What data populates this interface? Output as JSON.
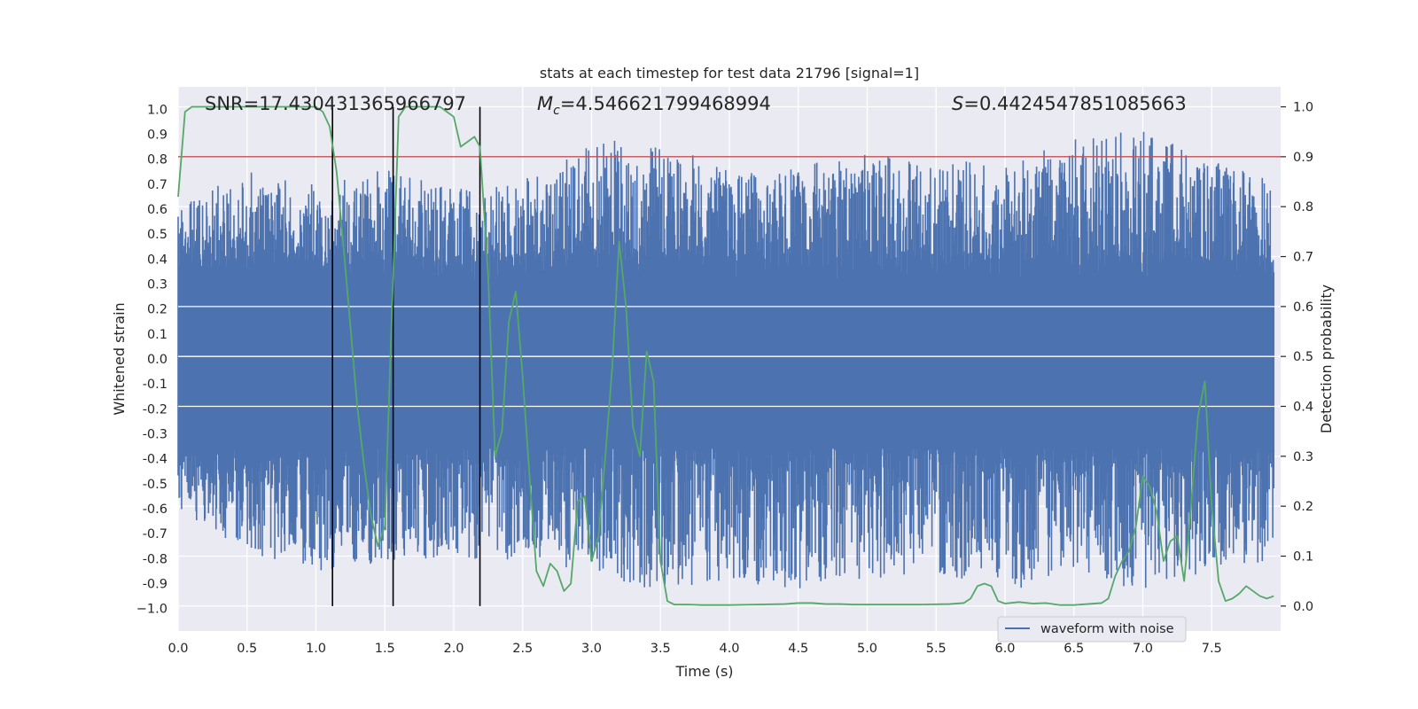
{
  "chart_data": {
    "type": "line",
    "title": "stats at each timestep for test data 21796 [signal=1]",
    "xlabel": "Time (s)",
    "ylabel_left": "Whitened strain",
    "ylabel_right": "Detection probability",
    "xlim": [
      0,
      8
    ],
    "ylim_left": [
      -1.09,
      1.09
    ],
    "ylim_right": [
      -0.05,
      1.04
    ],
    "x_ticks": [
      "0.0",
      "0.5",
      "1.0",
      "1.5",
      "2.0",
      "2.5",
      "3.0",
      "3.5",
      "4.0",
      "4.5",
      "5.0",
      "5.5",
      "6.0",
      "6.5",
      "7.0",
      "7.5"
    ],
    "x_tick_values": [
      0,
      0.5,
      1,
      1.5,
      2,
      2.5,
      3,
      3.5,
      4,
      4.5,
      5,
      5.5,
      6,
      6.5,
      7,
      7.5
    ],
    "y_left_ticks": [
      "1.0",
      "0.9",
      "0.8",
      "0.7",
      "0.6",
      "0.5",
      "0.4",
      "0.3",
      "0.2",
      "0.1",
      "0.0",
      "-0.1",
      "-0.2",
      "-0.3",
      "-0.4",
      "-0.5",
      "-0.6",
      "-0.7",
      "-0.8",
      "-0.9",
      "−1.0"
    ],
    "y_left_tick_values": [
      1,
      0.9,
      0.8,
      0.7,
      0.6,
      0.5,
      0.4,
      0.3,
      0.2,
      0.1,
      0,
      -0.1,
      -0.2,
      -0.3,
      -0.4,
      -0.5,
      -0.6,
      -0.7,
      -0.8,
      -0.9,
      -1
    ],
    "y_right_ticks": [
      "1.0",
      "0.9",
      "0.8",
      "0.7",
      "0.6",
      "0.5",
      "0.4",
      "0.3",
      "0.2",
      "0.1",
      "0.0"
    ],
    "y_right_tick_values": [
      1,
      0.9,
      0.8,
      0.7,
      0.6,
      0.5,
      0.4,
      0.3,
      0.2,
      0.1,
      0
    ],
    "annotations": {
      "snr": "SNR=17.430431365966797",
      "mc_symbol": "M",
      "mc_sub": "c",
      "mc_value": "=4.546621799468994",
      "s_symbol": "S",
      "s_value": "=0.4424547851085663"
    },
    "threshold": {
      "value": 0.9,
      "axis": "right",
      "color": "#c44e52"
    },
    "vertical_markers": [
      1.12,
      1.56,
      2.19
    ],
    "legend": {
      "label": "waveform with noise",
      "position": "lower-right"
    },
    "colors": {
      "waveform": "#4c72b0",
      "probability": "#55a868",
      "marker": "#000000",
      "axes_bg": "#eaeaf2",
      "grid": "#ffffff"
    },
    "series": [
      {
        "name": "waveform with noise",
        "axis": "left",
        "kind": "dense-noise",
        "envelope": {
          "x": [
            0,
            0.5,
            1,
            1.5,
            2,
            2.5,
            3,
            3.5,
            4,
            4.5,
            5,
            5.5,
            6,
            6.5,
            7,
            7.5,
            7.95
          ],
          "max": [
            0.62,
            0.75,
            0.7,
            0.76,
            0.68,
            0.72,
            0.9,
            0.88,
            0.75,
            0.78,
            0.82,
            0.8,
            0.78,
            0.88,
            0.92,
            0.8,
            0.72
          ],
          "min": [
            -0.6,
            -0.78,
            -0.85,
            -0.82,
            -0.8,
            -0.82,
            -0.85,
            -0.94,
            -0.9,
            -0.92,
            -0.88,
            -0.86,
            -0.94,
            -0.85,
            -0.94,
            -0.86,
            -0.82
          ]
        }
      },
      {
        "name": "detection probability",
        "axis": "right",
        "x": [
          0,
          0.05,
          0.1,
          0.2,
          0.3,
          0.4,
          0.5,
          0.6,
          0.7,
          0.8,
          0.9,
          1.0,
          1.05,
          1.1,
          1.15,
          1.2,
          1.25,
          1.3,
          1.35,
          1.4,
          1.45,
          1.5,
          1.55,
          1.6,
          1.65,
          1.7,
          1.8,
          1.9,
          2.0,
          2.05,
          2.1,
          2.15,
          2.19,
          2.25,
          2.3,
          2.35,
          2.4,
          2.45,
          2.5,
          2.55,
          2.6,
          2.65,
          2.7,
          2.75,
          2.8,
          2.85,
          2.9,
          2.95,
          3.0,
          3.05,
          3.1,
          3.15,
          3.2,
          3.25,
          3.3,
          3.35,
          3.4,
          3.45,
          3.5,
          3.55,
          3.6,
          3.7,
          3.8,
          4.0,
          4.2,
          4.4,
          4.5,
          4.6,
          4.7,
          4.8,
          4.9,
          5.0,
          5.2,
          5.4,
          5.6,
          5.7,
          5.75,
          5.8,
          5.85,
          5.9,
          5.95,
          6.0,
          6.1,
          6.2,
          6.3,
          6.4,
          6.5,
          6.6,
          6.7,
          6.75,
          6.8,
          6.85,
          6.9,
          6.95,
          7.0,
          7.05,
          7.1,
          7.15,
          7.2,
          7.25,
          7.3,
          7.35,
          7.4,
          7.45,
          7.5,
          7.55,
          7.6,
          7.65,
          7.7,
          7.75,
          7.8,
          7.85,
          7.9,
          7.95
        ],
        "values": [
          0.82,
          0.99,
          1.0,
          1.0,
          1.0,
          1.0,
          1.0,
          1.0,
          1.0,
          1.0,
          1.0,
          1.0,
          0.99,
          0.96,
          0.87,
          0.72,
          0.56,
          0.4,
          0.28,
          0.18,
          0.12,
          0.16,
          0.58,
          0.98,
          1.0,
          1.0,
          1.0,
          1.0,
          0.98,
          0.92,
          0.93,
          0.94,
          0.92,
          0.66,
          0.3,
          0.35,
          0.57,
          0.63,
          0.46,
          0.26,
          0.07,
          0.04,
          0.085,
          0.07,
          0.03,
          0.045,
          0.21,
          0.22,
          0.09,
          0.14,
          0.3,
          0.48,
          0.73,
          0.6,
          0.36,
          0.3,
          0.51,
          0.45,
          0.09,
          0.01,
          0.003,
          0.003,
          0.002,
          0.002,
          0.003,
          0.004,
          0.006,
          0.006,
          0.004,
          0.004,
          0.003,
          0.003,
          0.003,
          0.003,
          0.004,
          0.006,
          0.015,
          0.04,
          0.045,
          0.04,
          0.01,
          0.005,
          0.008,
          0.005,
          0.006,
          0.002,
          0.002,
          0.004,
          0.006,
          0.015,
          0.06,
          0.09,
          0.11,
          0.16,
          0.26,
          0.24,
          0.19,
          0.09,
          0.13,
          0.14,
          0.05,
          0.2,
          0.38,
          0.45,
          0.2,
          0.05,
          0.01,
          0.015,
          0.025,
          0.04,
          0.03,
          0.02,
          0.015,
          0.02
        ]
      }
    ]
  }
}
